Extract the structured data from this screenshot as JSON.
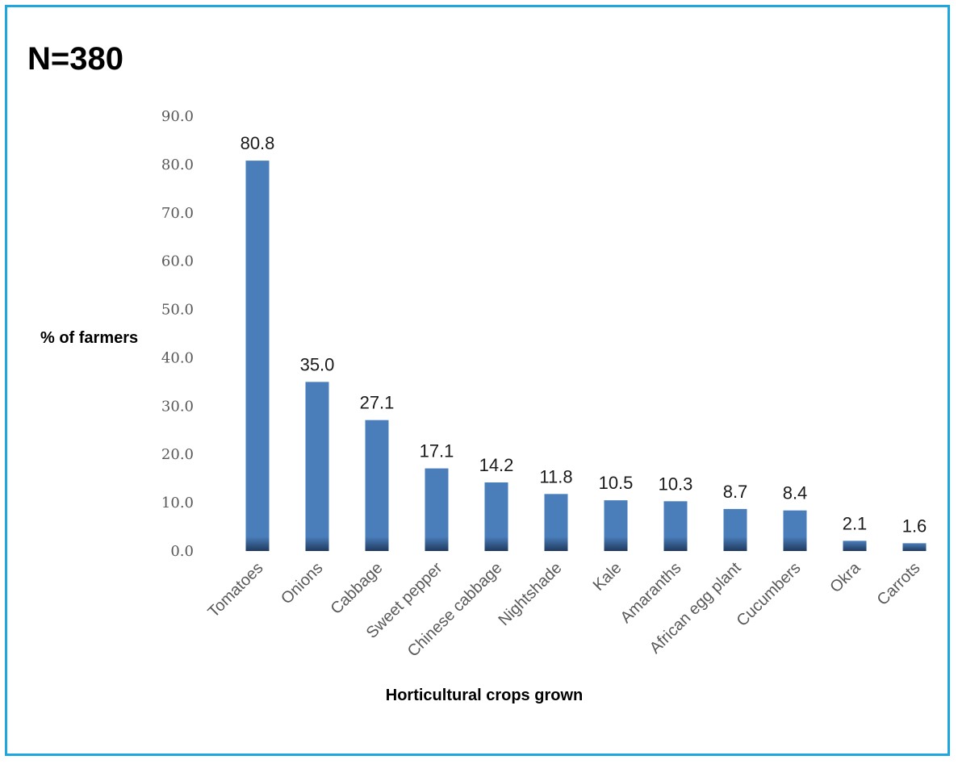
{
  "chart_data": {
    "type": "bar",
    "title": "N=380",
    "xlabel": "Horticultural crops grown",
    "ylabel": "% of farmers",
    "categories": [
      "Tomatoes",
      "Onions",
      "Cabbage",
      "Sweet pepper",
      "Chinese cabbage",
      "Nightshade",
      "Kale",
      "Amaranths",
      "African egg plant",
      "Cucumbers",
      "Okra",
      "Carrots"
    ],
    "values": [
      80.8,
      35.0,
      27.1,
      17.1,
      14.2,
      11.8,
      10.5,
      10.3,
      8.7,
      8.4,
      2.1,
      1.6
    ],
    "data_labels": [
      "80.8",
      "35.0",
      "27.1",
      "17.1",
      "14.2",
      "11.8",
      "10.5",
      "10.3",
      "8.7",
      "8.4",
      "2.1",
      "1.6"
    ],
    "ylim": [
      0,
      90
    ],
    "yticks": [
      "0.0",
      "10.0",
      "20.0",
      "30.0",
      "40.0",
      "50.0",
      "60.0",
      "70.0",
      "80.0",
      "90.0"
    ],
    "grid": false,
    "legend": "none",
    "colors": {
      "bar": "#4a7ebb",
      "bar_base": "#1f3a5f",
      "border": "#1ea6df"
    }
  }
}
